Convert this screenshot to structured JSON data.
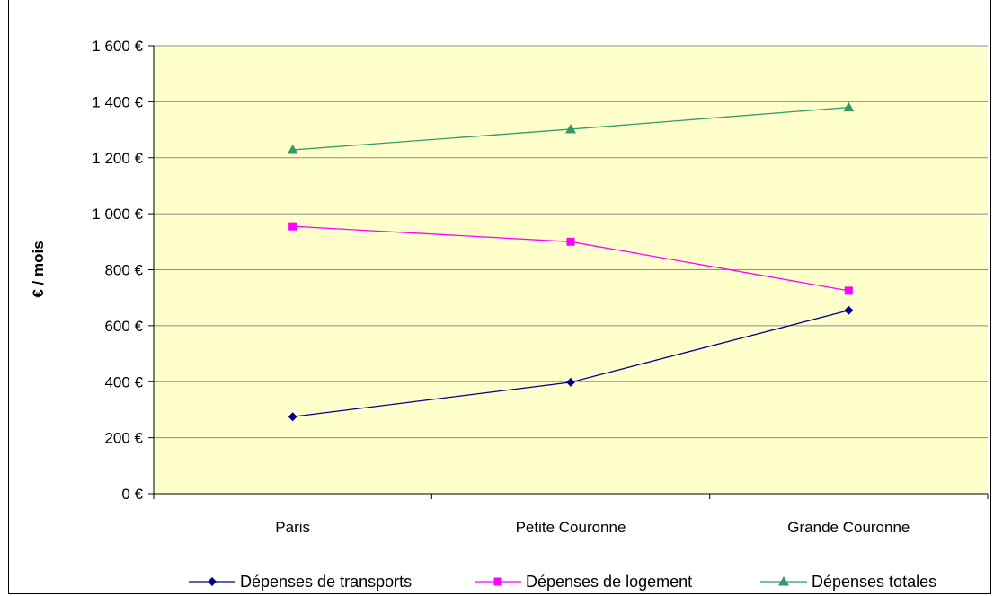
{
  "chart_data": {
    "type": "line",
    "title": "",
    "ylabel": "€ / mois",
    "xlabel": "",
    "categories": [
      "Paris",
      "Petite Couronne",
      "Grande Couronne"
    ],
    "ylim": [
      0,
      1600
    ],
    "yticks": [
      0,
      200,
      400,
      600,
      800,
      1000,
      1200,
      1400,
      1600
    ],
    "ytick_labels": [
      "0 €",
      "200 €",
      "400 €",
      "600 €",
      "800 €",
      "1 000 €",
      "1 200 €",
      "1 400 €",
      "1 600 €"
    ],
    "grid": true,
    "legend_position": "bottom",
    "plot_background": "#FFFFCC",
    "series": [
      {
        "name": "Dépenses de transports",
        "values": [
          275,
          398,
          655
        ],
        "color": "#000080",
        "marker": "diamond"
      },
      {
        "name": "Dépenses de logement",
        "values": [
          955,
          900,
          725
        ],
        "color": "#FF00FF",
        "marker": "square"
      },
      {
        "name": "Dépenses totales",
        "values": [
          1228,
          1302,
          1380
        ],
        "color": "#339966",
        "marker": "triangle"
      }
    ]
  }
}
